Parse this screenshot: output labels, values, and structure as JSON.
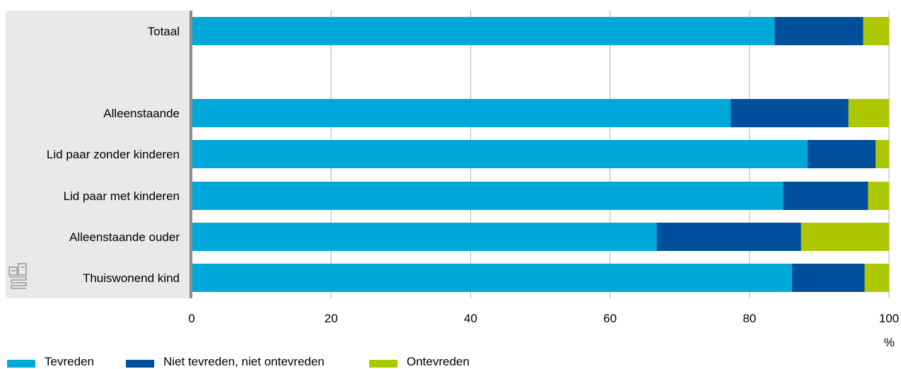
{
  "colors": {
    "panel": "#e9e9e9",
    "axis": "#8c8c8c",
    "grid": "#b0b0b0",
    "series": [
      "#00a8d9",
      "#004f9d",
      "#aec800"
    ]
  },
  "logo_icon": "cbs-logo-icon",
  "chart_data": {
    "type": "bar",
    "orientation": "horizontal",
    "stacked": true,
    "categories": [
      "Totaal",
      "",
      "Alleenstaande",
      "Lid paar zonder kinderen",
      "Lid paar met kinderen",
      "Alleenstaande ouder",
      "Thuiswonend kind"
    ],
    "series": [
      {
        "name": "Tevreden",
        "values": [
          83.6,
          null,
          77.3,
          88.3,
          84.8,
          66.7,
          86.1
        ]
      },
      {
        "name": "Niet tevreden, niet ontevreden",
        "values": [
          12.7,
          null,
          16.9,
          9.8,
          12.2,
          20.7,
          10.4
        ]
      },
      {
        "name": "Ontevreden",
        "values": [
          3.7,
          null,
          5.8,
          1.9,
          3.0,
          12.6,
          3.5
        ]
      }
    ],
    "xlim": [
      0,
      100
    ],
    "xticks": [
      0,
      20,
      40,
      60,
      80,
      100
    ],
    "xunit": "%",
    "grid": true,
    "legend_position": "bottom"
  }
}
